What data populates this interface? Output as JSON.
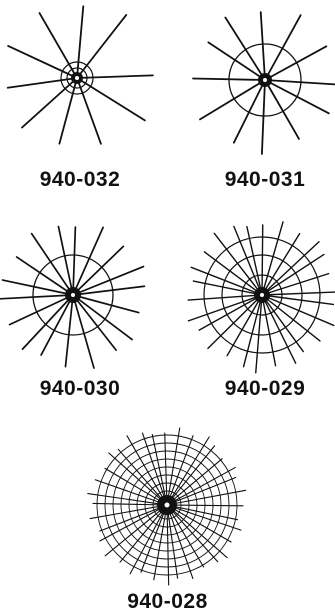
{
  "colors": {
    "ink": "#111111",
    "background": "#ffffff"
  },
  "items": [
    {
      "code": "940-032"
    },
    {
      "code": "940-031"
    },
    {
      "code": "940-030"
    },
    {
      "code": "940-029"
    },
    {
      "code": "940-028"
    }
  ]
}
